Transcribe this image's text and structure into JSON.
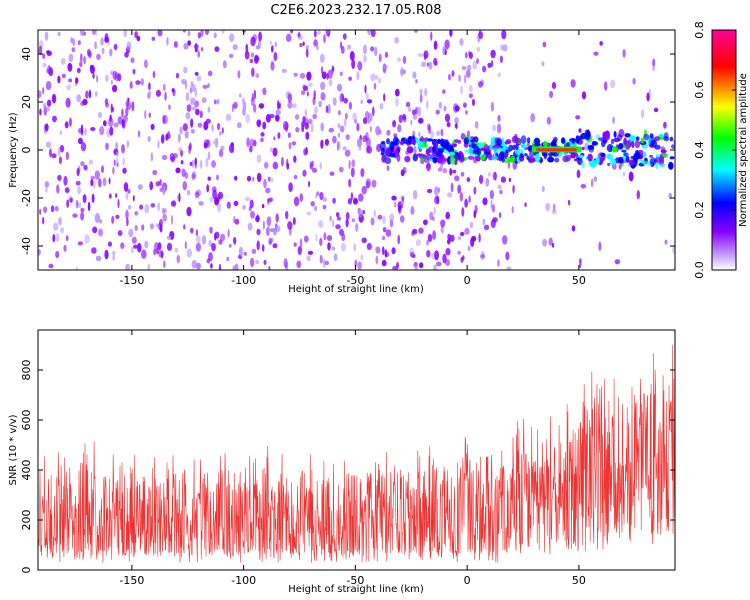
{
  "title": "C2E6.2023.232.17.05.R08",
  "colors": {
    "snr_trace": "#ee3333",
    "axis": "#000000",
    "background": "#ffffff"
  },
  "chart_data": [
    {
      "type": "heatmap",
      "xlabel": "Height of straight line (km)",
      "ylabel": "Frequency (Hz)",
      "xlim": [
        -192,
        93
      ],
      "ylim": [
        -50,
        50
      ],
      "xticks": [
        -150,
        -100,
        -50,
        0,
        50
      ],
      "yticks": [
        -40,
        -20,
        0,
        20,
        40
      ],
      "colorbar": {
        "label": "Normalized spectral amplitude",
        "range": [
          0.0,
          0.8
        ],
        "ticks": [
          0.0,
          0.2,
          0.4,
          0.6,
          0.8
        ],
        "colormap": [
          "#ffffff",
          "#8800ff",
          "#0000ff",
          "#00ffff",
          "#00ff00",
          "#ffff00",
          "#ff0000",
          "#ff0099"
        ]
      },
      "features": [
        {
          "name": "broadband noise",
          "x_range": [
            -192,
            20
          ],
          "freq_range": [
            -50,
            50
          ],
          "amplitude": 0.15
        },
        {
          "name": "central signal",
          "x_range": [
            -35,
            93
          ],
          "freq_center": 0,
          "amplitude": 0.35
        },
        {
          "name": "peak",
          "x_range": [
            30,
            50
          ],
          "freq_center": 0,
          "amplitude": 0.8
        }
      ]
    },
    {
      "type": "line",
      "xlabel": "Height of straight line (km)",
      "ylabel": "SNR (10 * v/v)",
      "xlim": [
        -192,
        93
      ],
      "ylim": [
        0,
        960
      ],
      "xticks": [
        -150,
        -100,
        -50,
        0,
        50
      ],
      "yticks": [
        0,
        200,
        400,
        600,
        800
      ],
      "series": [
        {
          "x": [
            -190,
            -180,
            -170,
            -160,
            -150,
            -140,
            -130,
            -120,
            -110,
            -100,
            -90,
            -80,
            -70,
            -60,
            -50,
            -40,
            -30,
            -20,
            -10,
            0,
            10,
            20,
            30,
            40,
            50,
            60,
            70,
            80,
            90
          ],
          "envelope_low": [
            70,
            70,
            70,
            70,
            70,
            70,
            70,
            70,
            70,
            70,
            70,
            70,
            70,
            70,
            70,
            70,
            70,
            70,
            70,
            70,
            75,
            85,
            100,
            110,
            130,
            150,
            160,
            170,
            180
          ],
          "envelope_high": [
            480,
            470,
            560,
            460,
            470,
            460,
            480,
            470,
            490,
            470,
            510,
            480,
            490,
            460,
            470,
            480,
            470,
            500,
            500,
            540,
            560,
            590,
            620,
            650,
            700,
            900,
            800,
            870,
            950
          ]
        }
      ]
    }
  ]
}
